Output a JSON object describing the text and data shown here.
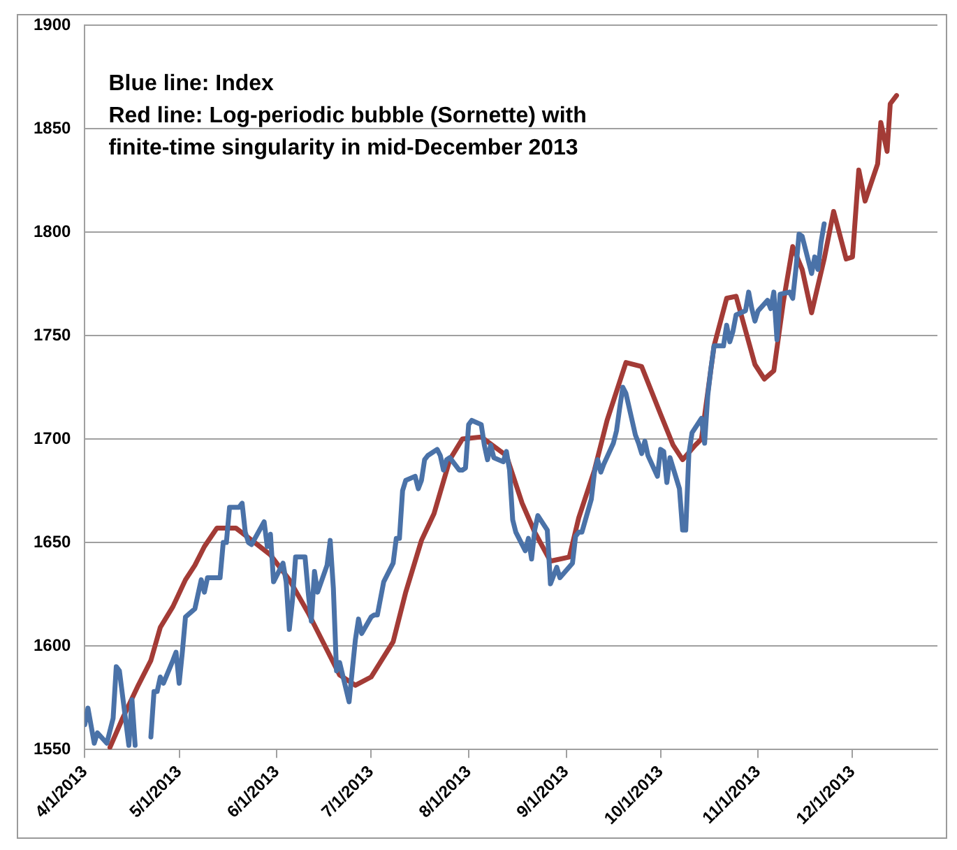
{
  "chart_data": {
    "type": "line",
    "xlim": [
      "2013-04-01",
      "2013-12-28"
    ],
    "xticks": [
      {
        "value": "2013-04-01",
        "label": "4/1/2013"
      },
      {
        "value": "2013-05-01",
        "label": "5/1/2013"
      },
      {
        "value": "2013-06-01",
        "label": "6/1/2013"
      },
      {
        "value": "2013-07-01",
        "label": "7/1/2013"
      },
      {
        "value": "2013-08-01",
        "label": "8/1/2013"
      },
      {
        "value": "2013-09-01",
        "label": "9/1/2013"
      },
      {
        "value": "2013-10-01",
        "label": "10/1/2013"
      },
      {
        "value": "2013-11-01",
        "label": "11/1/2013"
      },
      {
        "value": "2013-12-01",
        "label": "12/1/2013"
      }
    ],
    "ylim": [
      1550,
      1900
    ],
    "yticks": [
      1550,
      1600,
      1650,
      1700,
      1750,
      1800,
      1850,
      1900
    ],
    "grid": "y",
    "legend": false,
    "marker": "none",
    "line_style": "solid",
    "annotations": [
      "Blue line: Index",
      "Red line: Log-periodic bubble (Sornette) with",
      "finite-time singularity in mid-December 2013"
    ],
    "series": [
      {
        "color": "#4a72a8",
        "x": [
          "2013-04-01",
          "2013-04-02",
          "2013-04-04",
          "2013-04-05",
          "2013-04-08",
          "2013-04-10",
          "2013-04-11",
          "2013-04-12",
          "2013-04-15",
          "2013-04-16",
          "2013-04-17",
          "2013-04-18",
          "2013-04-19",
          "2013-04-22",
          "2013-04-23",
          "2013-04-24",
          "2013-04-25",
          "2013-04-26",
          "2013-04-29",
          "2013-04-30",
          "2013-05-01",
          "2013-05-02",
          "2013-05-03",
          "2013-05-06",
          "2013-05-07",
          "2013-05-08",
          "2013-05-09",
          "2013-05-10",
          "2013-05-14",
          "2013-05-15",
          "2013-05-16",
          "2013-05-17",
          "2013-05-20",
          "2013-05-21",
          "2013-05-22",
          "2013-05-23",
          "2013-05-24",
          "2013-05-28",
          "2013-05-29",
          "2013-05-30",
          "2013-05-31",
          "2013-06-03",
          "2013-06-04",
          "2013-06-05",
          "2013-06-06",
          "2013-06-07",
          "2013-06-10",
          "2013-06-11",
          "2013-06-12",
          "2013-06-13",
          "2013-06-14",
          "2013-06-17",
          "2013-06-18",
          "2013-06-19",
          "2013-06-20",
          "2013-06-21",
          "2013-06-24",
          "2013-06-25",
          "2013-06-26",
          "2013-06-27",
          "2013-06-28",
          "2013-07-01",
          "2013-07-02",
          "2013-07-03",
          "2013-07-05",
          "2013-07-08",
          "2013-07-09",
          "2013-07-10",
          "2013-07-11",
          "2013-07-12",
          "2013-07-15",
          "2013-07-16",
          "2013-07-17",
          "2013-07-18",
          "2013-07-19",
          "2013-07-22",
          "2013-07-23",
          "2013-07-24",
          "2013-07-25",
          "2013-07-26",
          "2013-07-29",
          "2013-07-30",
          "2013-07-31",
          "2013-08-01",
          "2013-08-02",
          "2013-08-05",
          "2013-08-06",
          "2013-08-07",
          "2013-08-08",
          "2013-08-09",
          "2013-08-12",
          "2013-08-13",
          "2013-08-14",
          "2013-08-15",
          "2013-08-16",
          "2013-08-19",
          "2013-08-20",
          "2013-08-21",
          "2013-08-22",
          "2013-08-23",
          "2013-08-26",
          "2013-08-27",
          "2013-08-28",
          "2013-08-29",
          "2013-08-30",
          "2013-09-03",
          "2013-09-04",
          "2013-09-05",
          "2013-09-06",
          "2013-09-09",
          "2013-09-10",
          "2013-09-11",
          "2013-09-12",
          "2013-09-13",
          "2013-09-16",
          "2013-09-17",
          "2013-09-18",
          "2013-09-19",
          "2013-09-20",
          "2013-09-23",
          "2013-09-24",
          "2013-09-25",
          "2013-09-26",
          "2013-09-27",
          "2013-09-30",
          "2013-10-01",
          "2013-10-02",
          "2013-10-03",
          "2013-10-04",
          "2013-10-07",
          "2013-10-08",
          "2013-10-09",
          "2013-10-10",
          "2013-10-11",
          "2013-10-14",
          "2013-10-15",
          "2013-10-16",
          "2013-10-17",
          "2013-10-18",
          "2013-10-21",
          "2013-10-22",
          "2013-10-23",
          "2013-10-24",
          "2013-10-25",
          "2013-10-28",
          "2013-10-29",
          "2013-10-30",
          "2013-10-31",
          "2013-11-01",
          "2013-11-04",
          "2013-11-05",
          "2013-11-06",
          "2013-11-07",
          "2013-11-08",
          "2013-11-11",
          "2013-11-12",
          "2013-11-13",
          "2013-11-14",
          "2013-11-15",
          "2013-11-18",
          "2013-11-19",
          "2013-11-20",
          "2013-11-21",
          "2013-11-22"
        ],
        "values": [
          1562,
          1570,
          1553,
          1558,
          1553,
          1565,
          1590,
          1588,
          1552,
          1574,
          1552,
          null,
          null,
          1556,
          1578,
          1578,
          1585,
          1582,
          1593,
          1597,
          1582,
          1597,
          1614,
          1618,
          1625,
          1632,
          1626,
          1633,
          1633,
          1650,
          1650,
          1667,
          1667,
          1669,
          1655,
          1650,
          1649,
          1660,
          1648,
          1654,
          1631,
          1640,
          1631,
          1608,
          1622,
          1643,
          1643,
          1626,
          1612,
          1636,
          1626,
          1639,
          1651,
          1628,
          1588,
          1592,
          1573,
          1588,
          1603,
          1613,
          1606,
          1614,
          1615,
          1615,
          1631,
          1640,
          1652,
          1652,
          1675,
          1680,
          1682,
          1676,
          1680,
          1690,
          1692,
          1695,
          1692,
          1685,
          1690,
          1691,
          1685,
          1685,
          1686,
          1707,
          1709,
          1707,
          1697,
          1690,
          1697,
          1691,
          1689,
          1694,
          1685,
          1661,
          1655,
          1646,
          1652,
          1642,
          1656,
          1663,
          1656,
          1630,
          1634,
          1638,
          1633,
          1640,
          1653,
          1655,
          1655,
          1671,
          1684,
          1690,
          1684,
          1688,
          1698,
          1704,
          1715,
          1725,
          1722,
          1702,
          1698,
          1693,
          1699,
          1692,
          1682,
          1695,
          1694,
          1679,
          1691,
          1676,
          1656,
          1656,
          1693,
          1703,
          1710,
          1698,
          1721,
          1734,
          1745,
          1745,
          1755,
          1747,
          1752,
          1760,
          1762,
          1771,
          1763,
          1757,
          1762,
          1767,
          1763,
          1771,
          1748,
          1770,
          1771,
          1768,
          1782,
          1799,
          1798,
          1780,
          1788,
          1782,
          1795,
          1804
        ]
      },
      {
        "color": "#a33b36",
        "x": [
          "2013-04-09",
          "2013-04-13",
          "2013-04-18",
          "2013-04-22",
          "2013-04-25",
          "2013-04-29",
          "2013-05-03",
          "2013-05-06",
          "2013-05-09",
          "2013-05-13",
          "2013-05-19",
          "2013-05-25",
          "2013-05-30",
          "2013-06-05",
          "2013-06-11",
          "2013-06-17",
          "2013-06-21",
          "2013-06-26",
          "2013-07-01",
          "2013-07-08",
          "2013-07-12",
          "2013-07-17",
          "2013-07-21",
          "2013-07-26",
          "2013-07-30",
          "2013-08-05",
          "2013-08-13",
          "2013-08-18",
          "2013-08-22",
          "2013-08-27",
          "2013-09-02",
          "2013-09-05",
          "2013-09-10",
          "2013-09-14",
          "2013-09-20",
          "2013-09-25",
          "2013-10-01",
          "2013-10-05",
          "2013-10-08",
          "2013-10-12",
          "2013-10-14",
          "2013-10-18",
          "2013-10-22",
          "2013-10-25",
          "2013-10-31",
          "2013-11-03",
          "2013-11-06",
          "2013-11-09",
          "2013-11-12",
          "2013-11-15",
          "2013-11-18",
          "2013-11-22",
          "2013-11-25",
          "2013-11-29",
          "2013-12-01",
          "2013-12-03",
          "2013-12-05",
          "2013-12-09",
          "2013-12-10",
          "2013-12-12",
          "2013-12-13",
          "2013-12-15"
        ],
        "values": [
          1551,
          1565,
          1581,
          1593,
          1609,
          1619,
          1632,
          1639,
          1648,
          1657,
          1657,
          1650,
          1644,
          1632,
          1616,
          1598,
          1586,
          1581,
          1585,
          1602,
          1626,
          1651,
          1664,
          1690,
          1700,
          1701,
          1692,
          1669,
          1655,
          1641,
          1643,
          1662,
          1685,
          1709,
          1737,
          1735,
          1712,
          1697,
          1690,
          1697,
          1700,
          1745,
          1768,
          1769,
          1736,
          1729,
          1733,
          1766,
          1793,
          1782,
          1761,
          1787,
          1810,
          1787,
          1788,
          1830,
          1815,
          1833,
          1853,
          1839,
          1862,
          1866
        ]
      }
    ]
  }
}
